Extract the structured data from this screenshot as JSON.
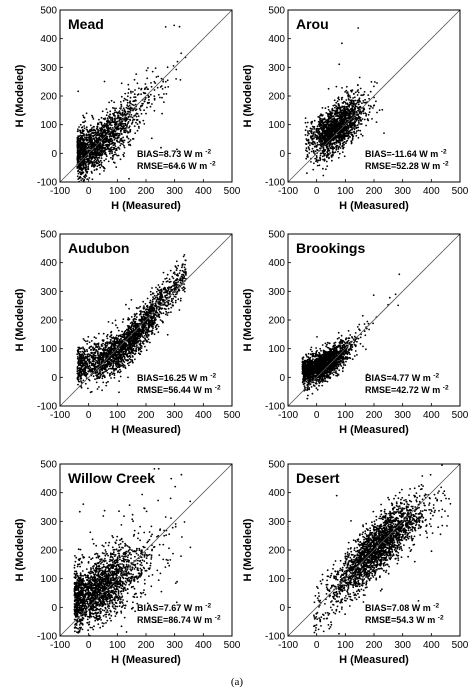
{
  "caption": "(a)",
  "chart_data": [
    {
      "type": "scatter",
      "title": "Mead",
      "xlabel": "H (Measured)",
      "ylabel": "H (Modeled)",
      "xlim": [
        -100,
        500
      ],
      "ylim": [
        -100,
        500
      ],
      "xticks": [
        "-100",
        "0",
        "100",
        "200",
        "300",
        "400",
        "500"
      ],
      "yticks": [
        "-100",
        "0",
        "100",
        "200",
        "300",
        "400",
        "500"
      ],
      "reference_line": "1:1",
      "stats": {
        "bias_text": "BIAS=8.73 W m",
        "rmse_text": "RMSE=64.6 W m",
        "unit_exp": "-2"
      },
      "cloud": {
        "n": 1700,
        "anchors": [
          [
            -40,
            0
          ],
          [
            0,
            5
          ],
          [
            50,
            40
          ],
          [
            100,
            85
          ],
          [
            150,
            135
          ],
          [
            200,
            185
          ],
          [
            250,
            225
          ],
          [
            300,
            255
          ],
          [
            340,
            270
          ]
        ],
        "x_mode": 35,
        "x_spread": 95,
        "x_min": -40,
        "x_max": 340,
        "y_sd": 45,
        "outlier_frac": 0.02
      }
    },
    {
      "type": "scatter",
      "title": "Arou",
      "xlabel": "H (Measured)",
      "ylabel": "H (Modeled)",
      "xlim": [
        -100,
        500
      ],
      "ylim": [
        -100,
        500
      ],
      "xticks": [
        "-100",
        "0",
        "100",
        "200",
        "300",
        "400",
        "500"
      ],
      "yticks": [
        "-100",
        "0",
        "100",
        "200",
        "300",
        "400",
        "500"
      ],
      "reference_line": "1:1",
      "stats": {
        "bias_text": "BIAS=-11.64 W m",
        "rmse_text": "RMSE=52.28 W m",
        "unit_exp": "-2"
      },
      "cloud": {
        "n": 1700,
        "anchors": [
          [
            -40,
            30
          ],
          [
            0,
            50
          ],
          [
            50,
            75
          ],
          [
            100,
            110
          ],
          [
            150,
            150
          ],
          [
            200,
            180
          ],
          [
            240,
            195
          ]
        ],
        "x_mode": 70,
        "x_spread": 55,
        "x_min": -40,
        "x_max": 240,
        "y_sd": 40,
        "outlier_frac": 0.015
      }
    },
    {
      "type": "scatter",
      "title": "Audubon",
      "xlabel": "H (Measured)",
      "ylabel": "H (Modeled)",
      "xlim": [
        -100,
        500
      ],
      "ylim": [
        -100,
        500
      ],
      "xticks": [
        "-100",
        "0",
        "100",
        "200",
        "300",
        "400",
        "500"
      ],
      "yticks": [
        "-100",
        "0",
        "100",
        "200",
        "300",
        "400",
        "500"
      ],
      "reference_line": "1:1",
      "stats": {
        "bias_text": "BIAS=16.25 W m",
        "rmse_text": "RMSE=56.44 W m",
        "unit_exp": "-2"
      },
      "cloud": {
        "n": 2300,
        "anchors": [
          [
            -40,
            40
          ],
          [
            0,
            45
          ],
          [
            50,
            60
          ],
          [
            100,
            85
          ],
          [
            150,
            130
          ],
          [
            200,
            190
          ],
          [
            250,
            260
          ],
          [
            300,
            320
          ],
          [
            340,
            360
          ]
        ],
        "x_mode": 130,
        "x_spread": 120,
        "x_min": -40,
        "x_max": 340,
        "y_sd": 35,
        "outlier_frac": 0.01
      }
    },
    {
      "type": "scatter",
      "title": "Brookings",
      "xlabel": "H (Measured)",
      "ylabel": "H (Modeled)",
      "xlim": [
        -100,
        500
      ],
      "ylim": [
        -100,
        500
      ],
      "xticks": [
        "-100",
        "0",
        "100",
        "200",
        "300",
        "400",
        "500"
      ],
      "yticks": [
        "-100",
        "0",
        "100",
        "200",
        "300",
        "400",
        "500"
      ],
      "reference_line": "1:1",
      "stats": {
        "bias_text": "BIAS=4.77 W m",
        "rmse_text": "RMSE=42.72 W m",
        "unit_exp": "-2"
      },
      "cloud": {
        "n": 2100,
        "anchors": [
          [
            -50,
            20
          ],
          [
            0,
            30
          ],
          [
            50,
            55
          ],
          [
            100,
            90
          ],
          [
            150,
            140
          ],
          [
            200,
            190
          ],
          [
            250,
            240
          ],
          [
            290,
            270
          ]
        ],
        "x_mode": 20,
        "x_spread": 60,
        "x_min": -50,
        "x_max": 290,
        "y_sd": 25,
        "outlier_frac": 0.01
      }
    },
    {
      "type": "scatter",
      "title": "Willow Creek",
      "xlabel": "H (Measured)",
      "ylabel": "H (Modeled)",
      "xlim": [
        -100,
        500
      ],
      "ylim": [
        -100,
        500
      ],
      "xticks": [
        "-100",
        "0",
        "100",
        "200",
        "300",
        "400",
        "500"
      ],
      "yticks": [
        "-100",
        "0",
        "100",
        "200",
        "300",
        "400",
        "500"
      ],
      "reference_line": "1:1",
      "stats": {
        "bias_text": "BIAS=7.67 W m",
        "rmse_text": "RMSE=86.74 W m",
        "unit_exp": "-2"
      },
      "cloud": {
        "n": 2100,
        "anchors": [
          [
            -50,
            30
          ],
          [
            0,
            45
          ],
          [
            50,
            70
          ],
          [
            100,
            100
          ],
          [
            150,
            130
          ],
          [
            200,
            160
          ],
          [
            250,
            190
          ],
          [
            300,
            215
          ],
          [
            370,
            240
          ]
        ],
        "x_mode": 40,
        "x_spread": 90,
        "x_min": -50,
        "x_max": 370,
        "y_sd": 55,
        "outlier_frac": 0.06
      }
    },
    {
      "type": "scatter",
      "title": "Desert",
      "xlabel": "H (Measured)",
      "ylabel": "H (Modeled)",
      "xlim": [
        -100,
        500
      ],
      "ylim": [
        -100,
        500
      ],
      "xticks": [
        "-100",
        "0",
        "100",
        "200",
        "300",
        "400",
        "500"
      ],
      "yticks": [
        "-100",
        "0",
        "100",
        "200",
        "300",
        "400",
        "500"
      ],
      "reference_line": "1:1",
      "stats": {
        "bias_text": "BIAS=7.08 W m",
        "rmse_text": "RMSE=54.3 W m",
        "unit_exp": "-2"
      },
      "cloud": {
        "n": 2400,
        "anchors": [
          [
            -10,
            -20
          ],
          [
            0,
            -10
          ],
          [
            50,
            40
          ],
          [
            100,
            100
          ],
          [
            150,
            150
          ],
          [
            200,
            200
          ],
          [
            250,
            245
          ],
          [
            300,
            290
          ],
          [
            350,
            320
          ],
          [
            420,
            360
          ],
          [
            470,
            380
          ]
        ],
        "x_mode": 210,
        "x_spread": 95,
        "x_min": -10,
        "x_max": 470,
        "y_sd": 45,
        "outlier_frac": 0.01
      }
    }
  ]
}
